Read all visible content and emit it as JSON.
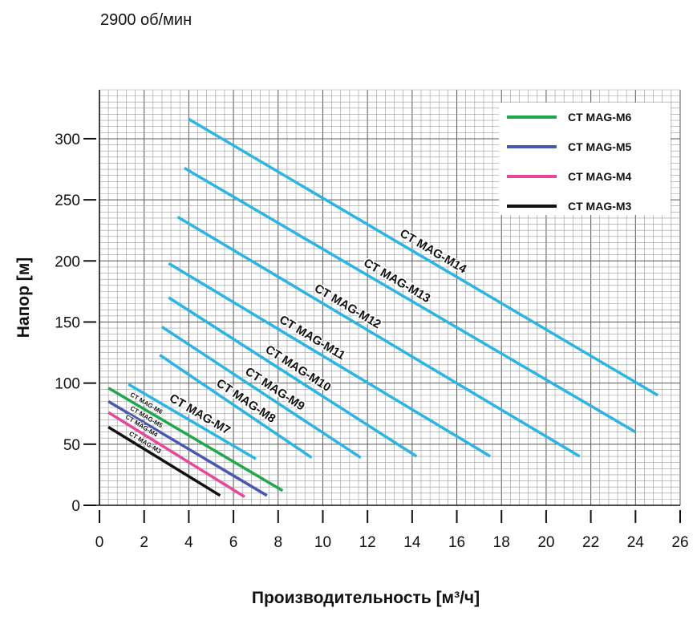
{
  "header": {
    "speed": "2900 об/мин"
  },
  "chart_data": {
    "type": "line",
    "xlabel": "Производительность [м³/ч]",
    "ylabel": "Напор [м]",
    "xlim": [
      0,
      26
    ],
    "ylim": [
      0,
      320
    ],
    "xticks": [
      0,
      2,
      4,
      6,
      8,
      10,
      12,
      14,
      16,
      18,
      20,
      22,
      24,
      26
    ],
    "yticks": [
      0,
      50,
      100,
      150,
      200,
      250,
      300
    ],
    "grid": true,
    "legend_position": "top-right",
    "legend": [
      {
        "label": "CT MAG-M6",
        "color": "#1fa84a"
      },
      {
        "label": "CT MAG-M5",
        "color": "#4a56b0"
      },
      {
        "label": "CT MAG-M4",
        "color": "#e5489a"
      },
      {
        "label": "CT MAG-M3",
        "color": "#111111"
      }
    ],
    "series": [
      {
        "name": "CT MAG-M3",
        "color": "#111111",
        "x": [
          0.4,
          5.4
        ],
        "y": [
          64,
          8
        ]
      },
      {
        "name": "CT MAG-M4",
        "color": "#e5489a",
        "x": [
          0.4,
          6.5
        ],
        "y": [
          76,
          7
        ]
      },
      {
        "name": "CT MAG-M5",
        "color": "#4a56b0",
        "x": [
          0.4,
          7.5
        ],
        "y": [
          85,
          8
        ]
      },
      {
        "name": "CT MAG-M6",
        "color": "#1fa84a",
        "x": [
          0.4,
          8.2
        ],
        "y": [
          96,
          12
        ]
      },
      {
        "name": "CT MAG-M7",
        "color": "#2bb5e6",
        "x": [
          1.3,
          7.0
        ],
        "y": [
          99,
          38
        ]
      },
      {
        "name": "CT MAG-M8",
        "color": "#2bb5e6",
        "x": [
          2.7,
          9.5
        ],
        "y": [
          123,
          39
        ]
      },
      {
        "name": "CT MAG-M9",
        "color": "#2bb5e6",
        "x": [
          2.8,
          11.7
        ],
        "y": [
          146,
          39
        ]
      },
      {
        "name": "CT MAG-M10",
        "color": "#2bb5e6",
        "x": [
          3.1,
          14.2
        ],
        "y": [
          170,
          40
        ]
      },
      {
        "name": "CT MAG-M11",
        "color": "#2bb5e6",
        "x": [
          3.1,
          17.5
        ],
        "y": [
          198,
          40
        ]
      },
      {
        "name": "CT MAG-M12",
        "color": "#2bb5e6",
        "x": [
          3.5,
          21.5
        ],
        "y": [
          236,
          40
        ]
      },
      {
        "name": "CT MAG-M13",
        "color": "#2bb5e6",
        "x": [
          3.8,
          24.0
        ],
        "y": [
          276,
          60
        ]
      },
      {
        "name": "CT MAG-M14",
        "color": "#2bb5e6",
        "x": [
          4.0,
          25.0
        ],
        "y": [
          316,
          90
        ]
      }
    ]
  }
}
